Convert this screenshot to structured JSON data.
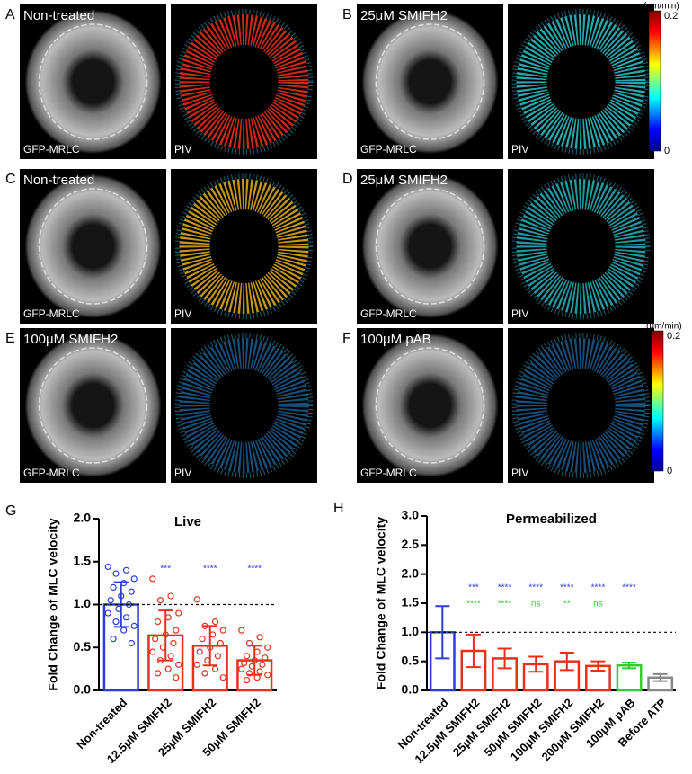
{
  "figure": {
    "panels": [
      {
        "letter": "A",
        "label": "Non-treated",
        "caption": "GFP-MRLC",
        "piv_caption": "PIV",
        "piv_color": "#e8301c"
      },
      {
        "letter": "B",
        "label": "25μM SMIFH2",
        "caption": "GFP-MRLC",
        "piv_caption": "PIV",
        "piv_color": "#2fc4c8"
      },
      {
        "letter": "C",
        "label": "Non-treated",
        "caption": "GFP-MRLC",
        "piv_caption": "PIV",
        "piv_color": "#e0b020"
      },
      {
        "letter": "D",
        "label": "25μM SMIFH2",
        "caption": "GFP-MRLC",
        "piv_caption": "PIV",
        "piv_color": "#2ab0b8"
      },
      {
        "letter": "E",
        "label": "100μM SMIFH2",
        "caption": "GFP-MRLC",
        "piv_caption": "PIV",
        "piv_color": "#1d5a8a"
      },
      {
        "letter": "F",
        "label": "100μM pAB",
        "caption": "GFP-MRLC",
        "piv_caption": "PIV",
        "piv_color": "#1d5a8a"
      }
    ],
    "colorbars": [
      {
        "unit": "(μm/min)",
        "max": 0.2,
        "min": 0
      },
      {
        "unit": "(μm/min)",
        "max": 0.2,
        "min": 0
      }
    ],
    "chart_letters": [
      "G",
      "H"
    ]
  },
  "chart_data": [
    {
      "type": "bar",
      "title": "Live",
      "y_label": "Fold Change of MLC velocity",
      "categories": [
        "Non-treated",
        "12.5μM SMIFH2",
        "25μM SMIFH2",
        "50μM SMIFH2"
      ],
      "values": [
        1.0,
        0.64,
        0.52,
        0.35
      ],
      "errors": [
        0.26,
        0.29,
        0.23,
        0.17
      ],
      "colors": [
        "#2b3fd6",
        "#e8301c",
        "#e8301c",
        "#e8301c"
      ],
      "points": [
        [
          1.44,
          1.4,
          1.36,
          1.3,
          1.25,
          1.2,
          1.15,
          1.1,
          1.05,
          1.0,
          0.95,
          0.9,
          0.85,
          0.8,
          0.75,
          0.7,
          0.6,
          0.55
        ],
        [
          1.3,
          1.1,
          1.05,
          0.9,
          0.85,
          0.8,
          0.7,
          0.65,
          0.6,
          0.55,
          0.5,
          0.45,
          0.4,
          0.35,
          0.3,
          0.25,
          0.2,
          0.15
        ],
        [
          1.06,
          0.8,
          0.75,
          0.7,
          0.65,
          0.6,
          0.55,
          0.5,
          0.45,
          0.4,
          0.35,
          0.3,
          0.25,
          0.2,
          0.15
        ],
        [
          0.7,
          0.62,
          0.55,
          0.5,
          0.45,
          0.4,
          0.38,
          0.35,
          0.32,
          0.3,
          0.28,
          0.25,
          0.22,
          0.2,
          0.18,
          0.15,
          0.12
        ]
      ],
      "reference_line": 1.0,
      "significance": [
        {
          "color": "#2b3fd6",
          "labels": [
            null,
            "***",
            "****",
            "****"
          ]
        }
      ],
      "ylim": [
        0,
        2.0
      ],
      "yticks": [
        {
          "value": 0,
          "label": "0.0"
        },
        0.5,
        {
          "value": 1,
          "label": "1.0"
        },
        1.5,
        {
          "value": 2,
          "label": "2.0"
        }
      ]
    },
    {
      "type": "bar",
      "title": "Permeabilized",
      "y_label": "Fold Change of MLC velocity",
      "categories": [
        "Non-treated",
        "12.5μM SMIFH2",
        "25μM SMIFH2",
        "50μM SMIFH2",
        "100μM SMIFH2",
        "200μM SMIFH2",
        "100μM pAB",
        "Before ATP"
      ],
      "values": [
        1.0,
        0.68,
        0.55,
        0.45,
        0.5,
        0.42,
        0.43,
        0.22
      ],
      "errors": [
        0.45,
        0.28,
        0.17,
        0.13,
        0.15,
        0.08,
        0.05,
        0.06
      ],
      "colors": [
        "#2b3fd6",
        "#e8301c",
        "#e8301c",
        "#e8301c",
        "#e8301c",
        "#e8301c",
        "#33cc33",
        "#888888"
      ],
      "reference_line": 1.0,
      "significance": [
        {
          "color": "#2b3fd6",
          "labels": [
            null,
            "***",
            "****",
            "****",
            "****",
            "****",
            "****",
            null
          ]
        },
        {
          "color": "#33cc33",
          "labels": [
            null,
            "****",
            "****",
            "ns",
            "**",
            "ns",
            null,
            null
          ]
        }
      ],
      "ylim": [
        0,
        3.0
      ],
      "yticks": [
        {
          "value": 0,
          "label": "0.0"
        },
        0.5,
        {
          "value": 1,
          "label": "1.0"
        },
        1.5,
        {
          "value": 2,
          "label": "2.0"
        },
        2.5,
        {
          "value": 3,
          "label": "3.0"
        }
      ]
    }
  ]
}
